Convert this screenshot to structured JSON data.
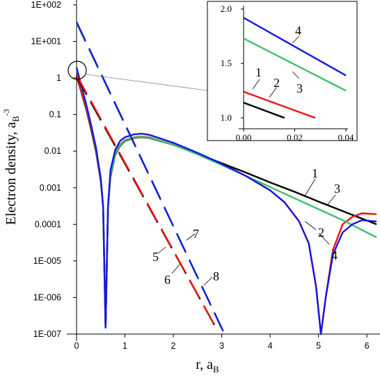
{
  "chart_data": {
    "type": "line",
    "title": "",
    "ylabel": "Electron density, a",
    "ylabel_sub": "B",
    "ylabel_sup": "-3",
    "xlabel": "r, a",
    "xlabel_sub": "B",
    "yscale": "log",
    "xlim": [
      -0.15,
      6.2
    ],
    "ylim": [
      1e-07,
      100
    ],
    "x_ticks": [
      "0",
      "1",
      "2",
      "3",
      "4",
      "5",
      "6"
    ],
    "y_ticks": [
      "1E-007",
      "1E-006",
      "1E-005",
      "0.0001",
      "0.001",
      "0.01",
      "0.1",
      "1",
      "1E+001",
      "1E+002"
    ],
    "grid": false,
    "series": [
      {
        "name": "1",
        "color": "#000000",
        "style": "solid",
        "x": [
          0.0,
          0.1,
          0.2,
          0.3,
          0.4,
          0.5,
          0.55,
          0.6,
          0.65,
          0.7,
          0.8,
          0.9,
          1.0,
          1.2,
          1.35,
          1.5,
          2.0,
          2.5,
          3.0,
          3.5,
          4.0,
          4.5,
          5.0,
          5.5,
          6.2
        ],
        "y": [
          1.15,
          0.4,
          0.14,
          0.04,
          0.01,
          0.0015,
          0.0003,
          1.5e-07,
          0.0003,
          0.002,
          0.008,
          0.014,
          0.019,
          0.023,
          0.024,
          0.023,
          0.015,
          0.0085,
          0.0047,
          0.0026,
          0.0014,
          0.00078,
          0.00042,
          0.00023,
          0.0001
        ]
      },
      {
        "name": "2",
        "color": "#ee1111",
        "style": "solid",
        "x": [
          0.0,
          0.1,
          0.2,
          0.3,
          0.4,
          0.5,
          0.55,
          0.6,
          0.65,
          0.7,
          0.8,
          0.9,
          1.0,
          1.2,
          1.35,
          1.5,
          2.0,
          2.5,
          3.0,
          3.5,
          4.0,
          4.3,
          4.6,
          4.8,
          4.95,
          5.05,
          5.15,
          5.3,
          5.5,
          5.7,
          5.9,
          6.2
        ],
        "y": [
          1.24,
          0.42,
          0.15,
          0.045,
          0.011,
          0.0016,
          0.0003,
          1.5e-07,
          0.0003,
          0.0025,
          0.009,
          0.015,
          0.02,
          0.024,
          0.025,
          0.024,
          0.015,
          0.0083,
          0.0043,
          0.0021,
          0.00085,
          0.0004,
          0.00012,
          3e-05,
          2e-06,
          1e-07,
          1e-06,
          2e-05,
          0.0001,
          0.00016,
          0.0002,
          0.00019
        ]
      },
      {
        "name": "3",
        "color": "#3cc06a",
        "style": "solid",
        "x": [
          0.0,
          0.1,
          0.2,
          0.3,
          0.4,
          0.5,
          0.55,
          0.6,
          0.65,
          0.7,
          0.8,
          0.9,
          1.0,
          1.2,
          1.35,
          1.5,
          2.0,
          2.5,
          3.0,
          3.5,
          4.0,
          4.5,
          5.0,
          5.5,
          6.2
        ],
        "y": [
          1.73,
          0.55,
          0.18,
          0.05,
          0.012,
          0.0017,
          0.0003,
          1.5e-07,
          0.0003,
          0.0022,
          0.0085,
          0.0145,
          0.0195,
          0.0235,
          0.0245,
          0.0235,
          0.0152,
          0.0082,
          0.0042,
          0.0021,
          0.00105,
          0.00052,
          0.00026,
          0.00013,
          4.4e-05
        ]
      },
      {
        "name": "4",
        "color": "#1515e0",
        "style": "solid",
        "x": [
          0.0,
          0.1,
          0.2,
          0.3,
          0.4,
          0.5,
          0.55,
          0.6,
          0.65,
          0.7,
          0.8,
          0.9,
          1.0,
          1.2,
          1.35,
          1.5,
          2.0,
          2.5,
          3.0,
          3.5,
          4.0,
          4.3,
          4.6,
          4.8,
          4.95,
          5.05,
          5.15,
          5.3,
          5.5,
          5.7,
          5.9,
          6.2
        ],
        "y": [
          1.92,
          0.6,
          0.19,
          0.052,
          0.013,
          0.0018,
          0.0003,
          1.5e-07,
          0.0003,
          0.003,
          0.011,
          0.019,
          0.024,
          0.029,
          0.03,
          0.028,
          0.017,
          0.009,
          0.0045,
          0.0021,
          0.00085,
          0.0004,
          0.00012,
          3e-05,
          2e-06,
          1e-07,
          1e-06,
          1.5e-05,
          6e-05,
          0.0001,
          0.00013,
          0.00012
        ]
      },
      {
        "name": "5",
        "color": "#000000",
        "style": "dashed",
        "x": [
          0.0,
          2.92
        ],
        "y": [
          1.1,
          1.2e-07
        ]
      },
      {
        "name": "6",
        "color": "#ee1111",
        "style": "dashed",
        "x": [
          0.0,
          2.92
        ],
        "y": [
          1.2,
          1.2e-07
        ]
      },
      {
        "name": "7",
        "color": "#3cc06a",
        "style": "dashed",
        "x": [
          0.0,
          3.03
        ],
        "y": [
          32,
          1.2e-07
        ]
      },
      {
        "name": "8",
        "color": "#1515e0",
        "style": "dashed",
        "x": [
          0.0,
          3.03
        ],
        "y": [
          34,
          1.2e-07
        ]
      }
    ],
    "inset": {
      "xlim": [
        -0.005,
        0.04
      ],
      "ylim": [
        0.9,
        2.0
      ],
      "x_ticks": [
        "0.00",
        "0.02",
        "0.04"
      ],
      "y_ticks": [
        "1.0",
        "1.5",
        "2.0"
      ],
      "series": [
        {
          "name": "1",
          "color": "#000000",
          "x": [
            0.0,
            0.016
          ],
          "y": [
            1.14,
            1.0
          ]
        },
        {
          "name": "2",
          "color": "#ee1111",
          "x": [
            0.0,
            0.028
          ],
          "y": [
            1.24,
            1.0
          ]
        },
        {
          "name": "3",
          "color": "#3cc06a",
          "x": [
            0.0,
            0.04
          ],
          "y": [
            1.73,
            1.25
          ]
        },
        {
          "name": "4",
          "color": "#1515e0",
          "x": [
            0.0,
            0.04
          ],
          "y": [
            1.92,
            1.39
          ]
        }
      ]
    }
  }
}
